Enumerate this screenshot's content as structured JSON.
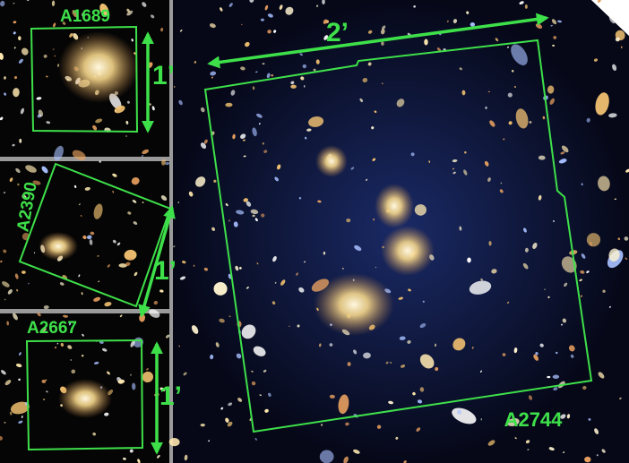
{
  "panels": [
    {
      "label": "A1689",
      "scale": "1’"
    },
    {
      "label": "A2390",
      "scale": "1’"
    },
    {
      "label": "A2667",
      "scale": "1’"
    }
  ],
  "main": {
    "label": "A2744",
    "scale": "2’"
  }
}
